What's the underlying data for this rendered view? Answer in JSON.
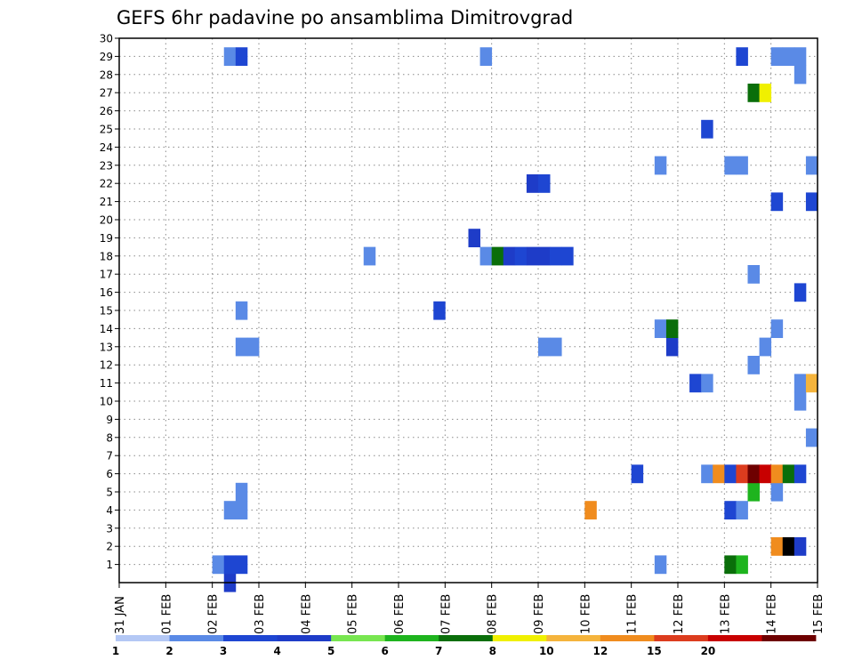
{
  "chart_data": {
    "type": "heatmap",
    "title": "GEFS 6hr padavine po ansamblima Dimitrovgrad",
    "xlabel": "",
    "ylabel": "",
    "x_unit": "6h steps from 31 JAN 00Z",
    "x_range": [
      0,
      60
    ],
    "ylim": [
      0,
      30
    ],
    "grid": true,
    "y_ticks": [
      1,
      2,
      3,
      4,
      5,
      6,
      7,
      8,
      9,
      10,
      11,
      12,
      13,
      14,
      15,
      16,
      17,
      18,
      19,
      20,
      21,
      22,
      23,
      24,
      25,
      26,
      27,
      28,
      29,
      30
    ],
    "x_ticks": [
      {
        "step": 0,
        "label": "31 JAN"
      },
      {
        "step": 4,
        "label": "01 FEB"
      },
      {
        "step": 8,
        "label": "02 FEB"
      },
      {
        "step": 12,
        "label": "03 FEB"
      },
      {
        "step": 16,
        "label": "04 FEB"
      },
      {
        "step": 20,
        "label": "05 FEB"
      },
      {
        "step": 24,
        "label": "06 FEB"
      },
      {
        "step": 28,
        "label": "07 FEB"
      },
      {
        "step": 32,
        "label": "08 FEB"
      },
      {
        "step": 36,
        "label": "09 FEB"
      },
      {
        "step": 40,
        "label": "10 FEB"
      },
      {
        "step": 44,
        "label": "11 FEB"
      },
      {
        "step": 48,
        "label": "12 FEB"
      },
      {
        "step": 52,
        "label": "13 FEB"
      },
      {
        "step": 56,
        "label": "14 FEB"
      },
      {
        "step": 60,
        "label": "15 FEB"
      }
    ],
    "colorbar": {
      "labels": [
        "1",
        "2",
        "3",
        "4",
        "5",
        "6",
        "7",
        "8",
        "10",
        "12",
        "15",
        "20"
      ],
      "colors": [
        "#b4c8f5",
        "#5a8ae6",
        "#1e46d2",
        "#1e3cc8",
        "#78e650",
        "#1eb41e",
        "#0a6e0a",
        "#f0f000",
        "#f5b43c",
        "#f08c1e",
        "#dc3c1e",
        "#c80000",
        "#6e0000"
      ]
    },
    "points": [
      [
        9.5,
        0,
        3
      ],
      [
        8.5,
        1,
        1
      ],
      [
        9.5,
        1,
        2
      ],
      [
        10.5,
        1,
        2
      ],
      [
        46.5,
        1,
        1
      ],
      [
        52.5,
        1,
        6
      ],
      [
        53.5,
        1,
        5
      ],
      [
        56.5,
        2,
        9
      ],
      [
        57.5,
        2,
        13
      ],
      [
        58.5,
        2,
        3
      ],
      [
        9.5,
        4,
        1
      ],
      [
        10.5,
        4,
        1
      ],
      [
        40.5,
        4,
        9
      ],
      [
        52.5,
        4,
        2
      ],
      [
        53.5,
        4,
        1
      ],
      [
        10.5,
        5,
        1
      ],
      [
        54.5,
        5,
        5
      ],
      [
        56.5,
        5,
        1
      ],
      [
        44.5,
        6,
        2
      ],
      [
        50.5,
        6,
        1
      ],
      [
        51.5,
        6,
        9
      ],
      [
        52.5,
        6,
        2
      ],
      [
        53.5,
        6,
        10
      ],
      [
        54.5,
        6,
        12
      ],
      [
        55.5,
        6,
        11
      ],
      [
        56.5,
        6,
        9
      ],
      [
        57.5,
        6,
        6
      ],
      [
        58.5,
        6,
        2
      ],
      [
        59.5,
        8,
        1
      ],
      [
        58.5,
        10,
        1
      ],
      [
        49.5,
        11,
        2
      ],
      [
        50.5,
        11,
        1
      ],
      [
        58.5,
        11,
        1
      ],
      [
        59.5,
        11,
        8
      ],
      [
        54.5,
        12,
        1
      ],
      [
        10.5,
        13,
        1
      ],
      [
        11.5,
        13,
        1
      ],
      [
        36.5,
        13,
        1
      ],
      [
        37.5,
        13,
        1
      ],
      [
        47.5,
        13,
        3
      ],
      [
        55.5,
        13,
        1
      ],
      [
        46.5,
        14,
        1
      ],
      [
        47.5,
        14,
        6
      ],
      [
        56.5,
        14,
        1
      ],
      [
        10.5,
        15,
        1
      ],
      [
        27.5,
        15,
        2
      ],
      [
        58.5,
        16,
        2
      ],
      [
        54.5,
        17,
        1
      ],
      [
        21.5,
        18,
        1
      ],
      [
        31.5,
        18,
        1
      ],
      [
        32.5,
        18,
        6
      ],
      [
        33.5,
        18,
        3
      ],
      [
        34.5,
        18,
        2
      ],
      [
        35.5,
        18,
        3
      ],
      [
        36.5,
        18,
        3
      ],
      [
        37.5,
        18,
        2
      ],
      [
        38.5,
        18,
        2
      ],
      [
        30.5,
        19,
        3
      ],
      [
        56.5,
        21,
        2
      ],
      [
        59.5,
        21,
        2
      ],
      [
        35.5,
        22,
        3
      ],
      [
        36.5,
        22,
        2
      ],
      [
        46.5,
        23,
        1
      ],
      [
        52.5,
        23,
        1
      ],
      [
        53.5,
        23,
        1
      ],
      [
        59.5,
        23,
        1
      ],
      [
        50.5,
        25,
        2
      ],
      [
        54.5,
        27,
        6
      ],
      [
        55.5,
        27,
        7
      ],
      [
        58.5,
        28,
        1
      ],
      [
        9.5,
        29,
        1
      ],
      [
        10.5,
        29,
        2
      ],
      [
        31.5,
        29,
        1
      ],
      [
        53.5,
        29,
        2
      ],
      [
        56.5,
        29,
        1
      ],
      [
        57.5,
        29,
        1
      ],
      [
        58.5,
        29,
        1
      ]
    ]
  }
}
